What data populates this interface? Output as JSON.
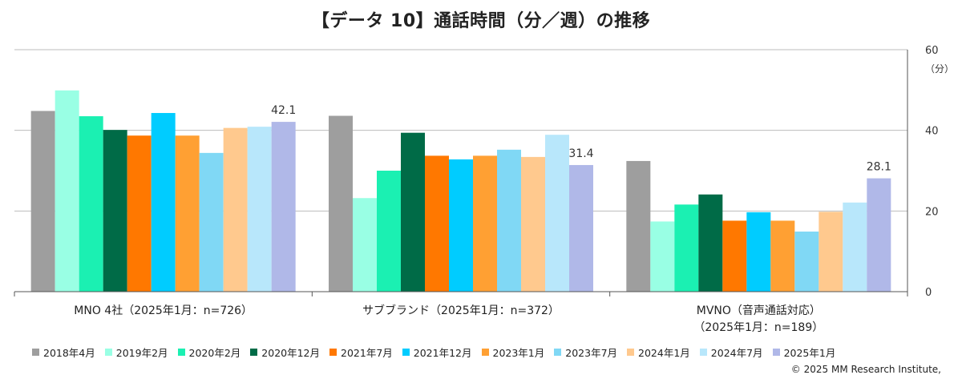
{
  "title": "【データ 10】通話時間（分／週）の推移",
  "copyright": "© 2025 MM Research Institute,",
  "chart_data": {
    "type": "bar",
    "title": "【データ 10】通話時間（分／週）の推移",
    "y_unit_label": "（分）",
    "ylim": [
      0,
      60
    ],
    "y_ticks": [
      0,
      20,
      40,
      60
    ],
    "grid": true,
    "y_axis_position": "right",
    "legend_position": "bottom",
    "categories": [
      [
        "MNO 4社（2025年1月：n=726）"
      ],
      [
        "サブブランド（2025年1月：n=372）"
      ],
      [
        "MVNO（音声通話対応）",
        "（2025年1月：n=189）"
      ]
    ],
    "series": [
      {
        "name": "2018年4月",
        "color": "#9e9e9e",
        "values": [
          44.8,
          43.6,
          32.4
        ]
      },
      {
        "name": "2019年2月",
        "color": "#99ffe4",
        "values": [
          49.9,
          23.2,
          17.4
        ]
      },
      {
        "name": "2020年2月",
        "color": "#1bf0b2",
        "values": [
          43.5,
          30.0,
          21.6
        ]
      },
      {
        "name": "2020年12月",
        "color": "#006b47",
        "values": [
          40.1,
          39.4,
          24.1
        ]
      },
      {
        "name": "2021年7月",
        "color": "#ff7800",
        "values": [
          38.7,
          33.7,
          17.6
        ]
      },
      {
        "name": "2021年12月",
        "color": "#00ccff",
        "values": [
          44.3,
          32.8,
          19.7
        ]
      },
      {
        "name": "2023年1月",
        "color": "#ffa033",
        "values": [
          38.7,
          33.7,
          17.6
        ]
      },
      {
        "name": "2023年7月",
        "color": "#80d8f5",
        "values": [
          34.4,
          35.2,
          14.9
        ]
      },
      {
        "name": "2024年1月",
        "color": "#ffc98e",
        "values": [
          40.6,
          33.4,
          19.8
        ]
      },
      {
        "name": "2024年7月",
        "color": "#b8e7fb",
        "values": [
          40.9,
          38.9,
          22.1
        ]
      },
      {
        "name": "2025年1月",
        "color": "#b0b8e8",
        "values": [
          42.1,
          31.4,
          28.1
        ]
      }
    ],
    "data_labels": [
      {
        "series": "2025年1月",
        "category_index": 0,
        "text": "42.1"
      },
      {
        "series": "2025年1月",
        "category_index": 1,
        "text": "31.4"
      },
      {
        "series": "2025年1月",
        "category_index": 2,
        "text": "28.1"
      }
    ]
  }
}
